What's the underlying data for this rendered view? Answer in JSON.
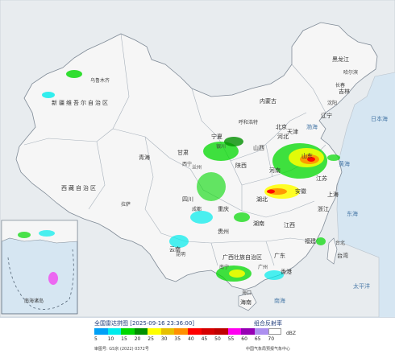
{
  "map": {
    "sea_color": "#d6e6f2",
    "land_color": "#f4f4f4",
    "outside_color": "#e8ecef",
    "border_color": "#8f9aa6",
    "region_labels": {
      "xinjiang": "新疆维吾尔自治区",
      "xizang": "西藏自治区",
      "qinghai": "青海",
      "heilongjiang": "黑龙江",
      "jilin": "吉林",
      "liaoning": "辽宁",
      "neimenggu": "内蒙古",
      "gansu": "甘肃",
      "ningxia": "宁夏",
      "shaanxi": "陕西",
      "shanxi": "山西",
      "hebei": "河北",
      "shandong": "山东",
      "henan": "河南",
      "jiangsu": "江苏",
      "anhui": "安徽",
      "hubei": "湖北",
      "hunan": "湖南",
      "jiangxi": "江西",
      "zhejiang": "浙江",
      "fujian": "福建",
      "guangdong": "广东",
      "guangxi": "广西壮族自治区",
      "guizhou": "贵州",
      "yunnan": "云南",
      "sichuan": "四川",
      "chongqing": "重庆",
      "taiwan": "台湾",
      "hainan": "海南",
      "beijing": "北京",
      "tianjin": "天津",
      "shanghai": "上海",
      "hongkong": "香港"
    },
    "city_labels": {
      "urumqi": "乌鲁木齐",
      "harbin": "哈尔滨",
      "changchun": "长春",
      "shenyang": "沈阳",
      "lasa": "拉萨",
      "xining": "西宁",
      "lanzhou": "兰州",
      "yinchuan": "银川",
      "hohhot": "呼和浩特",
      "chengdu": "成都",
      "kunming": "昆明",
      "nanning": "南宁",
      "guangzhou": "广州",
      "taibei": "台北",
      "haikou": "海口"
    },
    "sea_labels": {
      "bohai": "渤海",
      "huanghai": "黄海",
      "donghai": "东海",
      "nanhai": "南海",
      "pacific": "太平洋",
      "japan_sea": "日本海"
    },
    "inset_labels": {
      "nanhai_islands": "南海诸岛"
    }
  },
  "footer": {
    "title": "全国雷达拼图 [2025-09-16 23:36:00]",
    "product": "组合反射率",
    "unit": "dBZ",
    "scale": [
      {
        "label": "5",
        "color": "#01a0f6"
      },
      {
        "label": "10",
        "color": "#00ecec"
      },
      {
        "label": "15",
        "color": "#00d800"
      },
      {
        "label": "20",
        "color": "#019000"
      },
      {
        "label": "25",
        "color": "#ffff00"
      },
      {
        "label": "30",
        "color": "#e7c000"
      },
      {
        "label": "35",
        "color": "#ff9000"
      },
      {
        "label": "40",
        "color": "#ff0000"
      },
      {
        "label": "45",
        "color": "#d60000"
      },
      {
        "label": "50",
        "color": "#c00000"
      },
      {
        "label": "55",
        "color": "#ff00f0"
      },
      {
        "label": "60",
        "color": "#9600b4"
      },
      {
        "label": "65",
        "color": "#ad90f0"
      },
      {
        "label": "70",
        "color": "#ffffff"
      }
    ],
    "credit": "审图号: GS京 (2022) 0372号",
    "center": "中国气象局预报气象中心"
  }
}
